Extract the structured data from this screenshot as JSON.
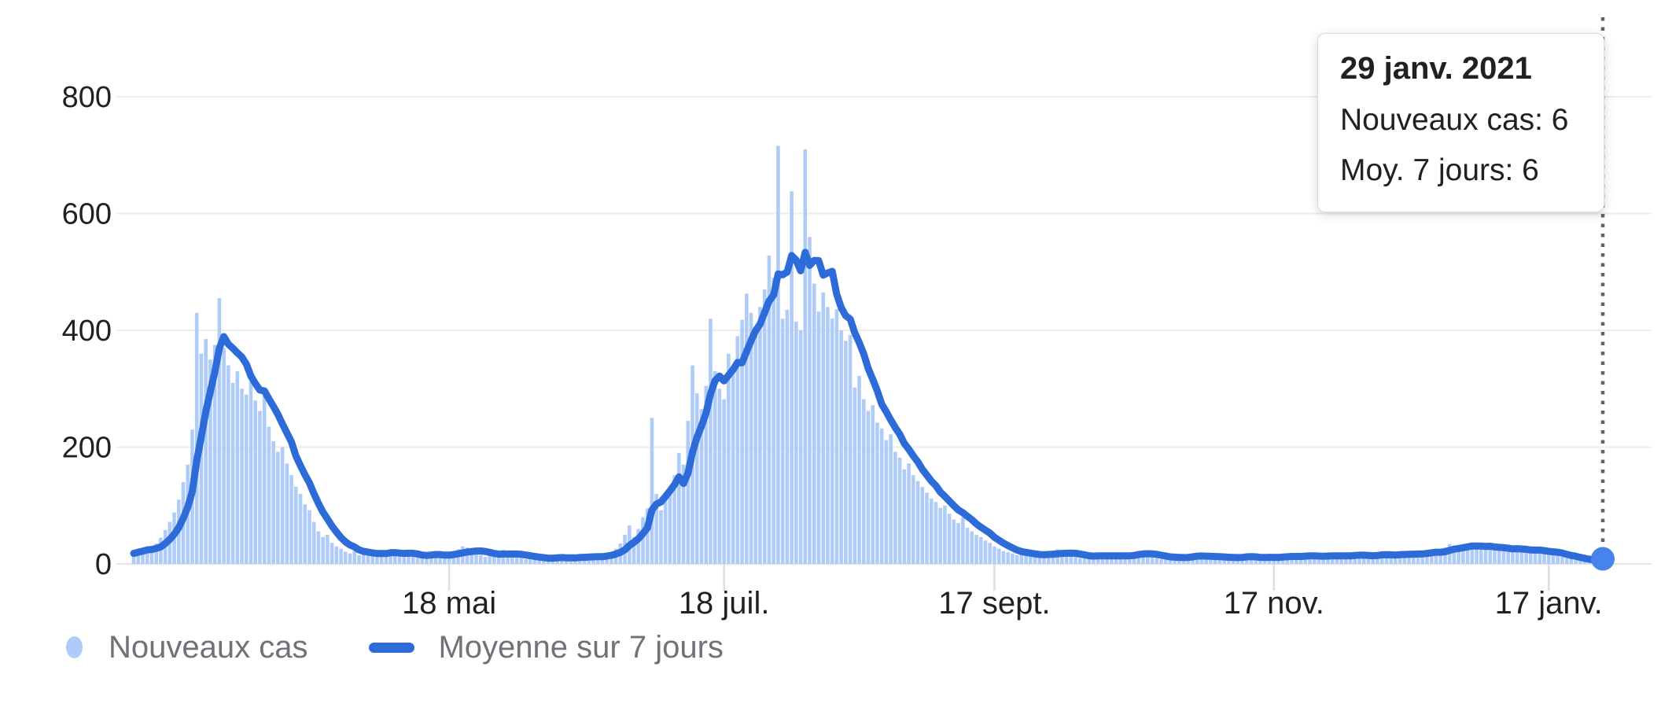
{
  "chart": {
    "tooltip": {
      "date": "29 janv. 2021",
      "rows": [
        "Nouveaux cas: 6",
        "Moy. 7 jours: 6"
      ]
    },
    "legend": [
      {
        "label": "Nouveaux cas",
        "swatch": "dot"
      },
      {
        "label": "Moyenne sur 7 jours",
        "swatch": "line"
      }
    ]
  },
  "colors": {
    "bar": "#afcbf8",
    "line": "#2d6bd8",
    "marker": "#4683ea",
    "grid": "#ededed",
    "baseline": "#e4e4e4",
    "tick": "#dcdee1",
    "axis_text": "#202124",
    "legend_text": "#6f7377",
    "cursor": "#5f6368",
    "tooltip_bg": "#ffffff"
  },
  "chart_data": {
    "type": "bar",
    "title": "",
    "xlabel": "",
    "ylabel": "",
    "legend_position": "bottom",
    "grid": true,
    "y": {
      "ticks": [
        0,
        200,
        400,
        600,
        800
      ],
      "tick_labels": [
        "0",
        "200",
        "400",
        "600",
        "800"
      ],
      "max": 800
    },
    "x": {
      "unit": "day",
      "n_days": 327,
      "ticks": [
        {
          "label": "18 mai",
          "day": 70
        },
        {
          "label": "18 juil.",
          "day": 131
        },
        {
          "label": "17 sept.",
          "day": 191
        },
        {
          "label": "17 nov.",
          "day": 253
        },
        {
          "label": "17 janv.",
          "day": 314
        }
      ]
    },
    "series": [
      {
        "name": "Nouveaux cas",
        "type": "bar",
        "values": [
          18,
          22,
          26,
          30,
          28,
          35,
          45,
          58,
          72,
          88,
          110,
          140,
          170,
          230,
          430,
          360,
          385,
          350,
          375,
          455,
          370,
          340,
          310,
          330,
          300,
          290,
          312,
          280,
          262,
          300,
          235,
          210,
          192,
          200,
          172,
          152,
          132,
          120,
          102,
          92,
          72,
          56,
          46,
          50,
          36,
          30,
          26,
          21,
          18,
          23,
          15,
          18,
          21,
          16,
          14,
          18,
          22,
          25,
          20,
          15,
          12,
          16,
          18,
          14,
          12,
          15,
          20,
          18,
          15,
          12,
          14,
          18,
          25,
          30,
          28,
          22,
          18,
          15,
          12,
          14,
          16,
          20,
          24,
          18,
          15,
          12,
          10,
          8,
          12,
          15,
          10,
          8,
          6,
          10,
          12,
          15,
          12,
          10,
          8,
          10,
          12,
          15,
          18,
          14,
          10,
          15,
          20,
          26,
          35,
          50,
          66,
          46,
          60,
          80,
          95,
          250,
          120,
          92,
          110,
          130,
          152,
          190,
          170,
          245,
          340,
          292,
          265,
          305,
          420,
          330,
          300,
          282,
          360,
          332,
          390,
          418,
          463,
          430,
          402,
          440,
          470,
          528,
          490,
          716,
          420,
          435,
          638,
          415,
          400,
          710,
          560,
          480,
          432,
          465,
          440,
          420,
          436,
          400,
          382,
          392,
          302,
          322,
          282,
          262,
          272,
          242,
          232,
          212,
          222,
          192,
          182,
          162,
          172,
          152,
          142,
          132,
          122,
          112,
          106,
          96,
          100,
          86,
          76,
          70,
          80,
          62,
          56,
          50,
          46,
          40,
          36,
          30,
          26,
          22,
          20,
          18,
          15,
          18,
          20,
          16,
          14,
          12,
          15,
          18,
          22,
          25,
          20,
          16,
          14,
          12,
          10,
          12,
          14,
          16,
          18,
          15,
          12,
          10,
          12,
          14,
          16,
          18,
          20,
          22,
          18,
          15,
          12,
          10,
          8,
          10,
          12,
          14,
          12,
          10,
          12,
          15,
          18,
          14,
          12,
          10,
          8,
          10,
          12,
          14,
          12,
          10,
          12,
          15,
          12,
          10,
          8,
          10,
          12,
          12,
          14,
          16,
          14,
          12,
          10,
          12,
          15,
          18,
          15,
          12,
          10,
          12,
          14,
          16,
          18,
          15,
          12,
          14,
          16,
          14,
          12,
          15,
          18,
          20,
          16,
          14,
          12,
          15,
          18,
          20,
          22,
          18,
          15,
          18,
          22,
          25,
          20,
          28,
          34,
          30,
          26,
          32,
          35,
          30,
          28,
          34,
          25,
          28,
          24,
          30,
          26,
          22,
          25,
          28,
          24,
          20,
          22,
          25,
          22,
          18,
          20,
          18,
          15,
          12,
          10,
          9,
          8,
          7,
          6,
          5,
          6,
          5,
          6
        ]
      },
      {
        "name": "Moyenne sur 7 jours",
        "type": "line",
        "derived": "rolling_mean_7_of_series_0"
      }
    ],
    "cursor": {
      "day": 326,
      "date": "29 janv. 2021",
      "nouveaux_cas": 6,
      "moy_7_jours": 6
    }
  }
}
